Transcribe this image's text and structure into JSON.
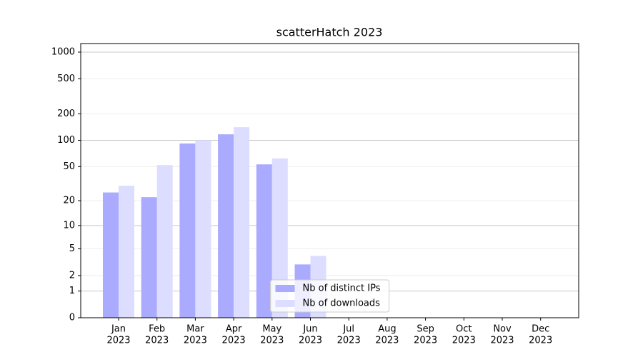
{
  "chart_data": {
    "type": "bar",
    "title": "scatterHatch 2023",
    "categories": [
      [
        "Jan",
        "2023"
      ],
      [
        "Feb",
        "2023"
      ],
      [
        "Mar",
        "2023"
      ],
      [
        "Apr",
        "2023"
      ],
      [
        "May",
        "2023"
      ],
      [
        "Jun",
        "2023"
      ],
      [
        "Jul",
        "2023"
      ],
      [
        "Aug",
        "2023"
      ],
      [
        "Sep",
        "2023"
      ],
      [
        "Oct",
        "2023"
      ],
      [
        "Nov",
        "2023"
      ],
      [
        "Dec",
        "2023"
      ]
    ],
    "series": [
      {
        "name": "Nb of distinct IPs",
        "color": "#aaaaff",
        "values": [
          25,
          22,
          92,
          117,
          53,
          3,
          0,
          0,
          0,
          0,
          0,
          0
        ]
      },
      {
        "name": "Nb of downloads",
        "color": "#ddddff",
        "values": [
          30,
          52,
          100,
          141,
          62,
          4,
          0,
          0,
          0,
          0,
          0,
          0
        ]
      }
    ],
    "yscale": "log1p",
    "ylim": [
      0,
      1250
    ],
    "yticks": [
      0,
      1,
      2,
      5,
      10,
      20,
      50,
      100,
      200,
      500,
      1000
    ],
    "grid": true,
    "legend": "lower center"
  }
}
